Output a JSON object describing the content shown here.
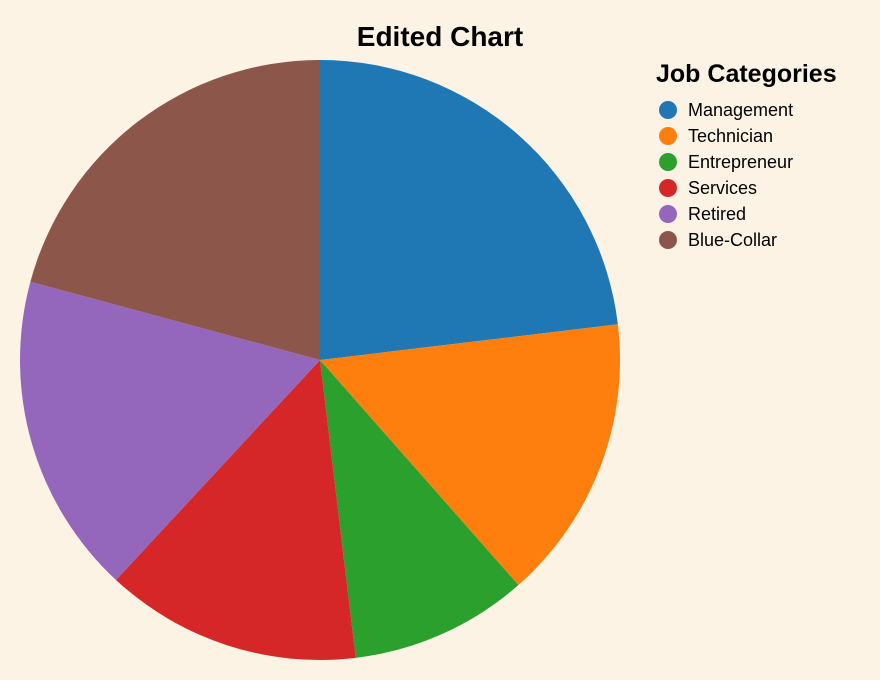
{
  "chart_data": {
    "type": "pie",
    "title": "Edited Chart",
    "legend_title": "Job Categories",
    "legend_position": "top-right",
    "categories": [
      "Management",
      "Technician",
      "Entrepreneur",
      "Services",
      "Retired",
      "Blue-Collar"
    ],
    "values": [
      23.1,
      15.4,
      9.6,
      13.8,
      17.3,
      20.8
    ],
    "colors": [
      "#1f77b4",
      "#ff7f0e",
      "#2ca02c",
      "#d62728",
      "#9467bd",
      "#8c564b"
    ],
    "start_angle": "12 o'clock",
    "direction": "clockwise"
  }
}
